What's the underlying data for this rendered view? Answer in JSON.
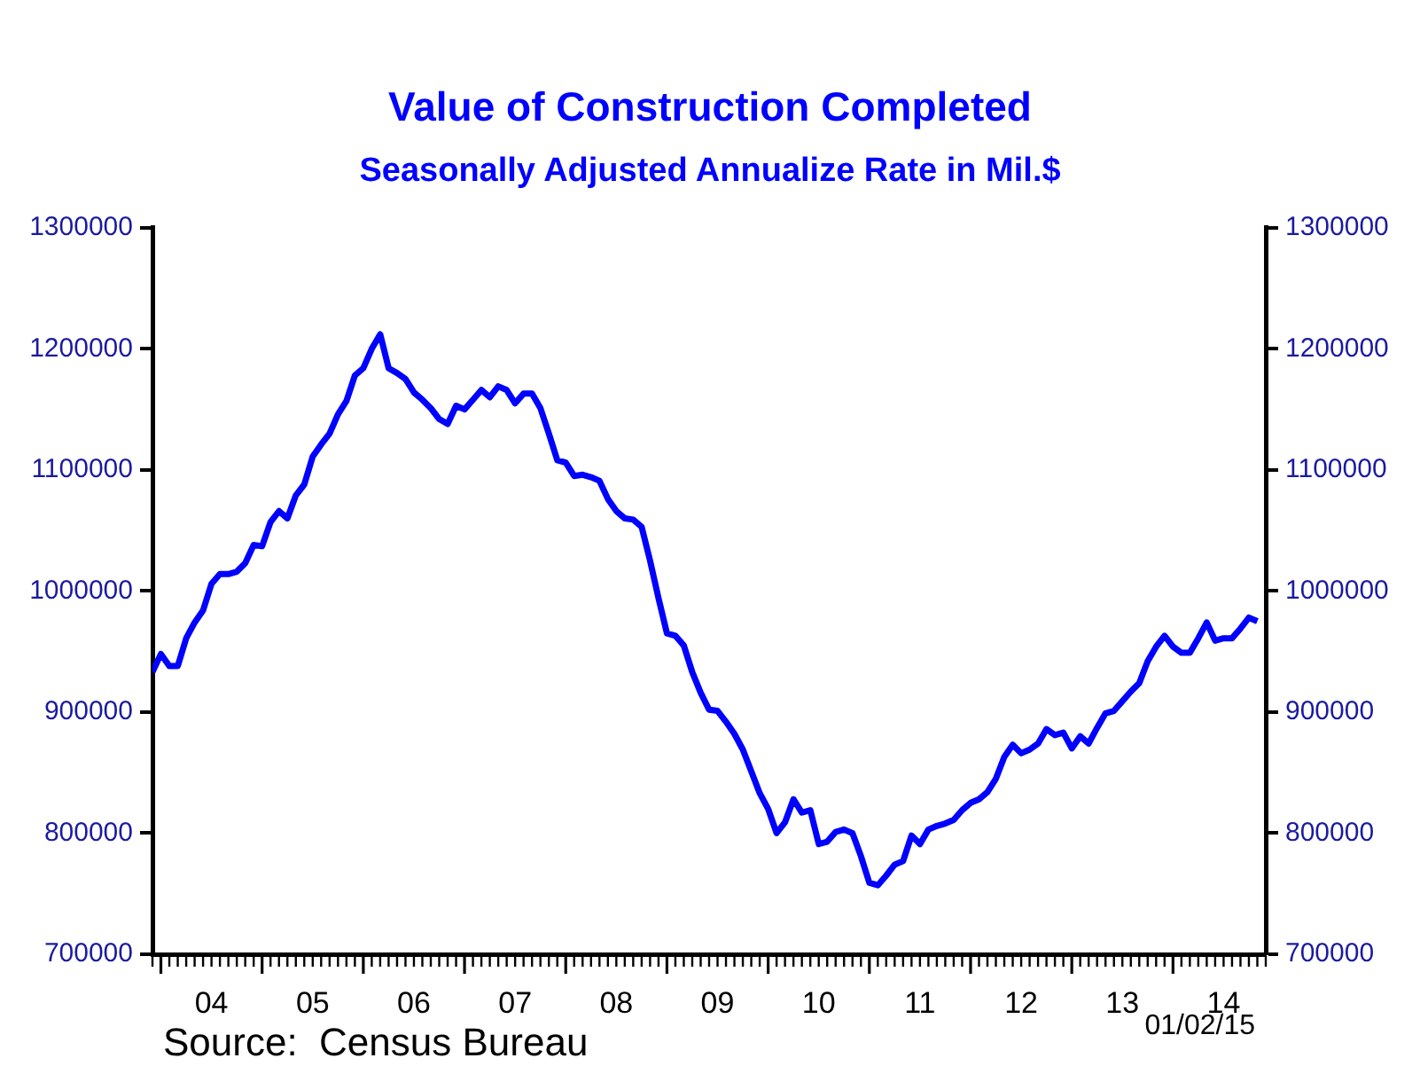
{
  "chart_data": {
    "type": "line",
    "title": "Value of Construction Completed",
    "subtitle": "Seasonally Adjusted Annualize Rate in Mil.$",
    "annotations": [
      "Source:  Census Bureau",
      "01/02/15"
    ],
    "x": [
      "2003-12",
      "2004-01",
      "2004-02",
      "2004-03",
      "2004-04",
      "2004-05",
      "2004-06",
      "2004-07",
      "2004-08",
      "2004-09",
      "2004-10",
      "2004-11",
      "2004-12",
      "2005-01",
      "2005-02",
      "2005-03",
      "2005-04",
      "2005-05",
      "2005-06",
      "2005-07",
      "2005-08",
      "2005-09",
      "2005-10",
      "2005-11",
      "2005-12",
      "2006-01",
      "2006-02",
      "2006-03",
      "2006-04",
      "2006-05",
      "2006-06",
      "2006-07",
      "2006-08",
      "2006-09",
      "2006-10",
      "2006-11",
      "2006-12",
      "2007-01",
      "2007-02",
      "2007-03",
      "2007-04",
      "2007-05",
      "2007-06",
      "2007-07",
      "2007-08",
      "2007-09",
      "2007-10",
      "2007-11",
      "2007-12",
      "2008-01",
      "2008-02",
      "2008-03",
      "2008-04",
      "2008-05",
      "2008-06",
      "2008-07",
      "2008-08",
      "2008-09",
      "2008-10",
      "2008-11",
      "2008-12",
      "2009-01",
      "2009-02",
      "2009-03",
      "2009-04",
      "2009-05",
      "2009-06",
      "2009-07",
      "2009-08",
      "2009-09",
      "2009-10",
      "2009-11",
      "2009-12",
      "2010-01",
      "2010-02",
      "2010-03",
      "2010-04",
      "2010-05",
      "2010-06",
      "2010-07",
      "2010-08",
      "2010-09",
      "2010-10",
      "2010-11",
      "2010-12",
      "2011-01",
      "2011-02",
      "2011-03",
      "2011-04",
      "2011-05",
      "2011-06",
      "2011-07",
      "2011-08",
      "2011-09",
      "2011-10",
      "2011-11",
      "2011-12",
      "2012-01",
      "2012-02",
      "2012-03",
      "2012-04",
      "2012-05",
      "2012-06",
      "2012-07",
      "2012-08",
      "2012-09",
      "2012-10",
      "2012-11",
      "2012-12",
      "2013-01",
      "2013-02",
      "2013-03",
      "2013-04",
      "2013-05",
      "2013-06",
      "2013-07",
      "2013-08",
      "2013-09",
      "2013-10",
      "2013-11",
      "2013-12",
      "2014-01",
      "2014-02",
      "2014-03",
      "2014-04",
      "2014-05",
      "2014-06",
      "2014-07",
      "2014-08",
      "2014-09",
      "2014-10",
      "2014-11"
    ],
    "values": [
      933000,
      948000,
      938000,
      938000,
      961000,
      974000,
      984000,
      1006000,
      1014000,
      1014000,
      1016000,
      1023000,
      1038000,
      1037000,
      1057000,
      1066000,
      1060000,
      1079000,
      1088000,
      1111000,
      1121000,
      1130000,
      1146000,
      1157000,
      1178000,
      1184000,
      1200000,
      1212000,
      1184000,
      1180000,
      1175000,
      1164000,
      1158000,
      1151000,
      1142000,
      1138000,
      1153000,
      1150000,
      1158000,
      1166000,
      1160000,
      1169000,
      1166000,
      1155000,
      1163000,
      1163000,
      1151000,
      1130000,
      1108000,
      1106000,
      1095000,
      1096000,
      1094000,
      1091000,
      1076000,
      1066000,
      1060000,
      1059000,
      1053000,
      1025000,
      994000,
      965000,
      963000,
      955000,
      933000,
      916000,
      902000,
      901000,
      892000,
      882000,
      869000,
      851000,
      833000,
      820000,
      800000,
      809000,
      828000,
      817000,
      819000,
      791000,
      793000,
      801000,
      803000,
      800000,
      781000,
      759000,
      757000,
      765000,
      774000,
      777000,
      798000,
      791000,
      803000,
      806000,
      808000,
      811000,
      819000,
      825000,
      828000,
      834000,
      845000,
      863000,
      873000,
      866000,
      869000,
      874000,
      886000,
      881000,
      883000,
      870000,
      880000,
      874000,
      887000,
      899000,
      901000,
      909000,
      917000,
      924000,
      942000,
      954000,
      963000,
      954000,
      949000,
      949000,
      961000,
      974000,
      959000,
      961000,
      961000,
      969000,
      978000,
      975000
    ],
    "color": "#0000ff",
    "xlim": [
      "2003-12",
      "2014-12"
    ],
    "xticks": [
      {
        "value": "2004-07",
        "label": "04"
      },
      {
        "value": "2005-07",
        "label": "05"
      },
      {
        "value": "2006-07",
        "label": "06"
      },
      {
        "value": "2007-07",
        "label": "07"
      },
      {
        "value": "2008-07",
        "label": "08"
      },
      {
        "value": "2009-07",
        "label": "09"
      },
      {
        "value": "2010-07",
        "label": "10"
      },
      {
        "value": "2011-07",
        "label": "11"
      },
      {
        "value": "2012-07",
        "label": "12"
      },
      {
        "value": "2013-07",
        "label": "13"
      },
      {
        "value": "2014-07",
        "label": "14"
      }
    ],
    "ylim": [
      700000,
      1300000
    ],
    "yticks": [
      700000,
      800000,
      900000,
      1000000,
      1100000,
      1200000,
      1300000
    ],
    "y2lim": [
      700000,
      1300000
    ],
    "y2ticks": [
      700000,
      800000,
      900000,
      1000000,
      1100000,
      1200000,
      1300000
    ]
  }
}
